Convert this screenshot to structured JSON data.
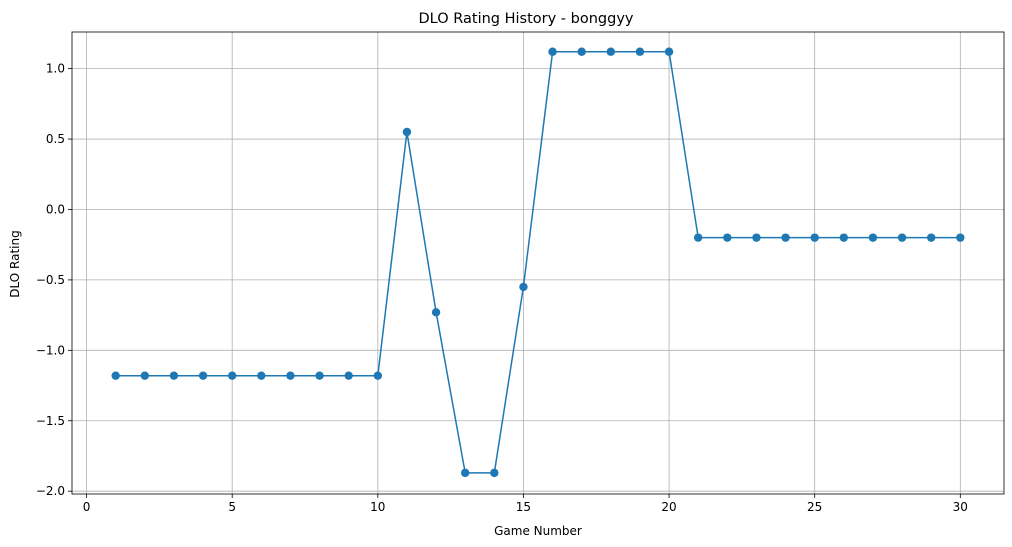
{
  "chart_data": {
    "type": "line",
    "title": "DLO Rating History - bonggyy",
    "xlabel": "Game Number",
    "ylabel": "DLO Rating",
    "xlim": [
      -0.5,
      31.5
    ],
    "ylim": [
      -2.02,
      1.26
    ],
    "xticks": [
      0,
      5,
      10,
      15,
      20,
      25,
      30
    ],
    "yticks": [
      -2.0,
      -1.5,
      -1.0,
      -0.5,
      0.0,
      0.5,
      1.0
    ],
    "ytick_labels": [
      "−2.0",
      "−1.5",
      "−1.0",
      "−0.5",
      "0.0",
      "0.5",
      "1.0"
    ],
    "grid": true,
    "series": [
      {
        "color": "#1f77b4",
        "marker": "circle",
        "x": [
          1,
          2,
          3,
          4,
          5,
          6,
          7,
          8,
          9,
          10,
          11,
          12,
          13,
          14,
          15,
          16,
          17,
          18,
          19,
          20,
          21,
          22,
          23,
          24,
          25,
          26,
          27,
          28,
          29,
          30
        ],
        "y": [
          -1.18,
          -1.18,
          -1.18,
          -1.18,
          -1.18,
          -1.18,
          -1.18,
          -1.18,
          -1.18,
          -1.18,
          0.55,
          -0.73,
          -1.87,
          -1.87,
          -0.55,
          1.12,
          1.12,
          1.12,
          1.12,
          1.12,
          -0.2,
          -0.2,
          -0.2,
          -0.2,
          -0.2,
          -0.2,
          -0.2,
          -0.2,
          -0.2,
          -0.2
        ]
      }
    ]
  }
}
